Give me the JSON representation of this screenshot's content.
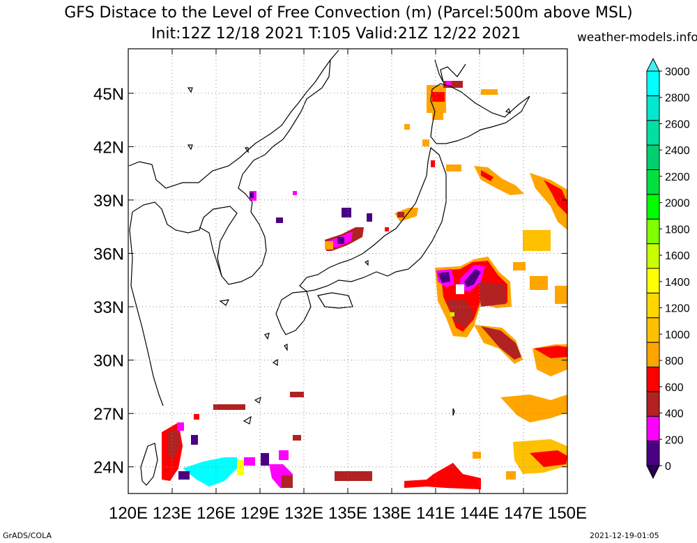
{
  "title": "GFS Distace to the Level of Free Convection (m) (Parcel:500m above MSL)",
  "subtitle": "Init:12Z 12/18 2021 T:105 Valid:21Z 12/22 2021",
  "site": "weather-models.info",
  "footer_left": "GrADS/COLA",
  "footer_right": "2021-12-19-01:05",
  "map": {
    "lon_range": [
      120,
      150
    ],
    "lat_range": [
      22.5,
      47.5
    ],
    "lon_ticks": [
      "120E",
      "123E",
      "126E",
      "129E",
      "132E",
      "135E",
      "138E",
      "141E",
      "144E",
      "147E",
      "150E"
    ],
    "lat_ticks": [
      "24N",
      "27N",
      "30N",
      "33N",
      "36N",
      "39N",
      "42N",
      "45N"
    ],
    "grid": "dotted"
  },
  "colorbar": {
    "labels": [
      "0",
      "200",
      "400",
      "600",
      "800",
      "1000",
      "1200",
      "1400",
      "1600",
      "1800",
      "2000",
      "2200",
      "2400",
      "2600",
      "2800",
      "3000"
    ],
    "colors": [
      "#4b0082",
      "#ff00ff",
      "#b22222",
      "#ff0000",
      "#ffa500",
      "#ffc000",
      "#ffd700",
      "#ffff00",
      "#c8ff00",
      "#7fff00",
      "#00ff00",
      "#00e040",
      "#00d070",
      "#00e0a0",
      "#00e8d0",
      "#00ffff"
    ],
    "under_color": "#2a0050",
    "over_color": "#40f0f0"
  }
}
